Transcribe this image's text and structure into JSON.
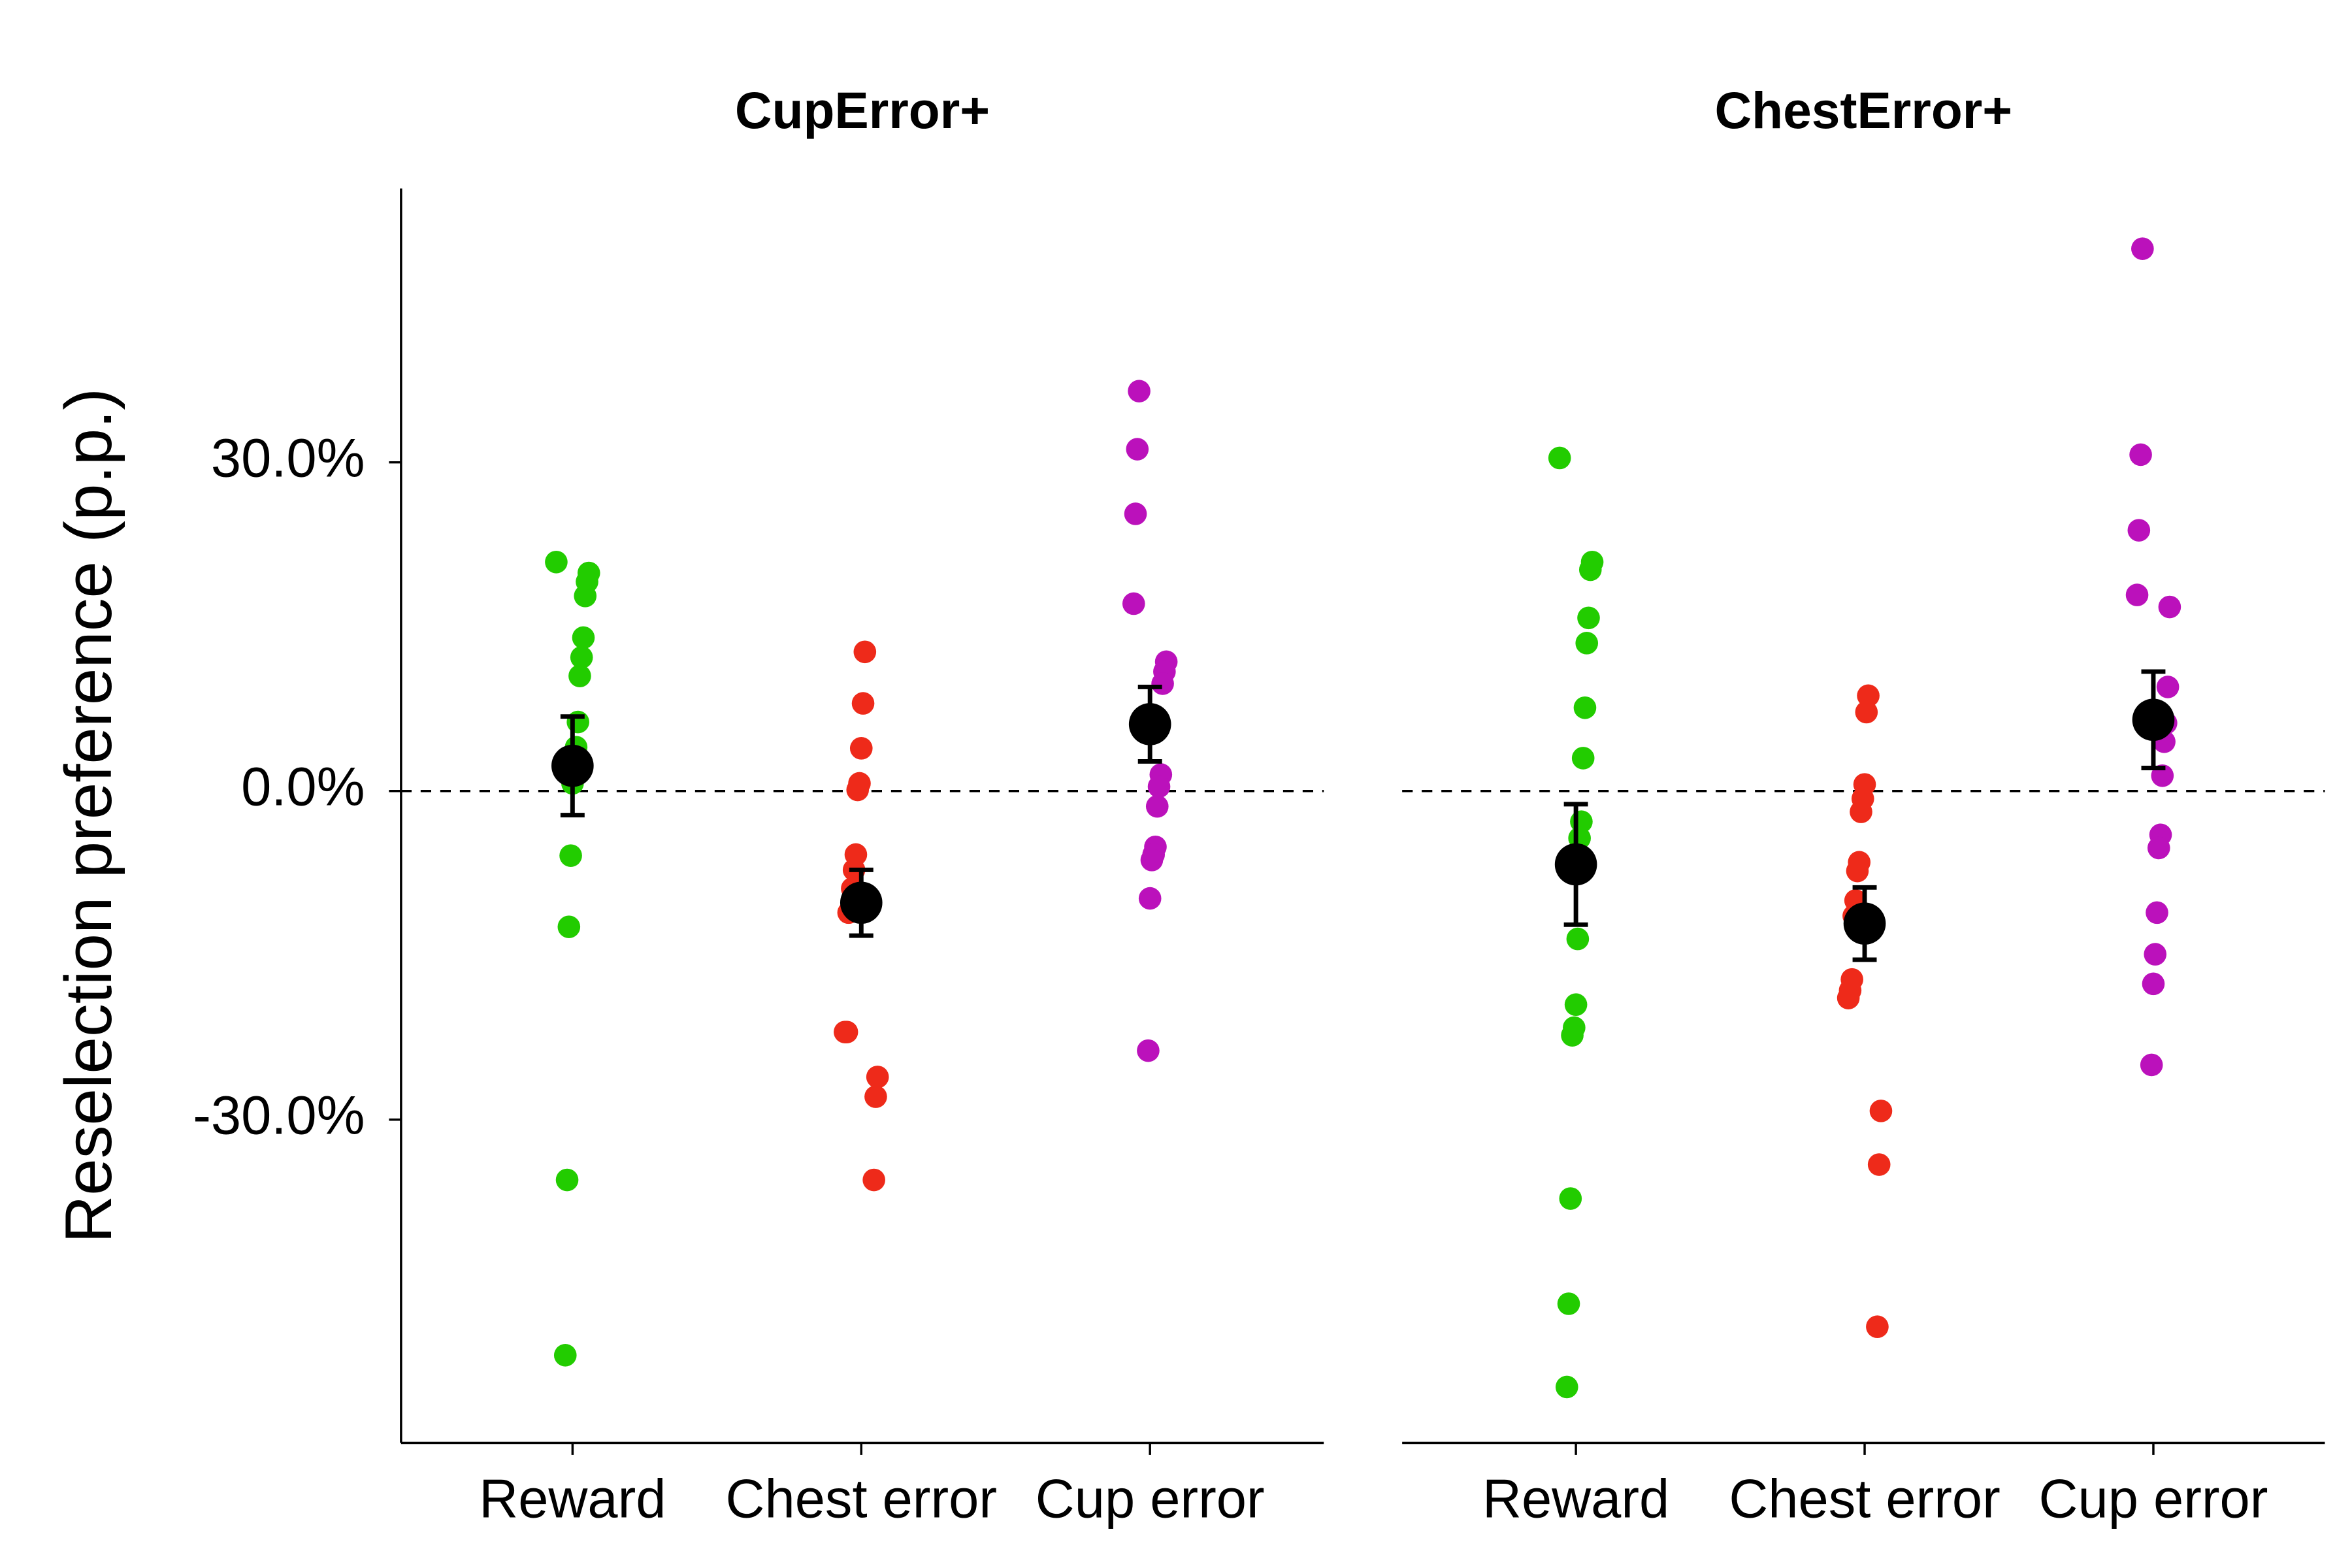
{
  "chart_data": [
    {
      "type": "strip",
      "title": "CupError+",
      "ylabel": "Reselection preference (p.p.)",
      "categories": [
        "Reward",
        "Chest error",
        "Cup error"
      ],
      "ylim": [
        -59.5,
        55
      ],
      "yticks": [
        {
          "value": -30,
          "label": "-30.0%"
        },
        {
          "value": 0,
          "label": "0.0%"
        },
        {
          "value": 30,
          "label": "30.0%"
        }
      ],
      "reference_line": 0,
      "series": [
        {
          "color": "#22cc00",
          "values": [
            20.9,
            19.9,
            19.1,
            17.8,
            14.0,
            12.2,
            10.5,
            6.3,
            4.0,
            1.8,
            0.7,
            -5.9,
            -12.4,
            -35.5,
            -51.5
          ],
          "mean": 2.3,
          "error": 4.5
        },
        {
          "color": "#ee2a1a",
          "values": [
            12.7,
            8.0,
            3.9,
            0.7,
            0.1,
            -5.8,
            -7.2,
            -8.9,
            -10.9,
            -11.1,
            -22.0,
            -22.0,
            -26.1,
            -27.9,
            -35.5
          ],
          "mean": -10.2,
          "error": 3.0
        },
        {
          "color": "#bb11bb",
          "values": [
            36.5,
            31.2,
            25.3,
            17.1,
            11.8,
            10.9,
            9.8,
            1.5,
            0.4,
            -1.4,
            -5.1,
            -5.8,
            -6.3,
            -9.8,
            -23.7
          ],
          "mean": 6.1,
          "error": 3.4
        }
      ]
    },
    {
      "type": "strip",
      "title": "ChestError+",
      "categories": [
        "Reward",
        "Chest error",
        "Cup error"
      ],
      "ylim": [
        -59.5,
        55
      ],
      "reference_line": 0,
      "series": [
        {
          "color": "#22cc00",
          "values": [
            30.4,
            20.9,
            20.2,
            15.8,
            13.5,
            7.6,
            3.0,
            -2.8,
            -4.3,
            -13.5,
            -19.5,
            -21.6,
            -22.3,
            -37.2,
            -46.8,
            -54.4
          ],
          "mean": -6.7,
          "error": 5.5
        },
        {
          "color": "#ee2a1a",
          "values": [
            8.7,
            7.2,
            0.6,
            -0.7,
            -1.9,
            -6.5,
            -7.3,
            -10.0,
            -11.4,
            -17.2,
            -18.2,
            -18.9,
            -29.2,
            -34.1,
            -48.9
          ],
          "mean": -12.1,
          "error": 3.3
        },
        {
          "color": "#bb11bb",
          "values": [
            49.5,
            30.7,
            23.8,
            17.9,
            16.8,
            9.5,
            6.2,
            4.5,
            1.4,
            -4.0,
            -5.2,
            -11.1,
            -14.9,
            -17.6,
            -25.0
          ],
          "mean": 6.5,
          "error": 4.4
        }
      ]
    }
  ]
}
